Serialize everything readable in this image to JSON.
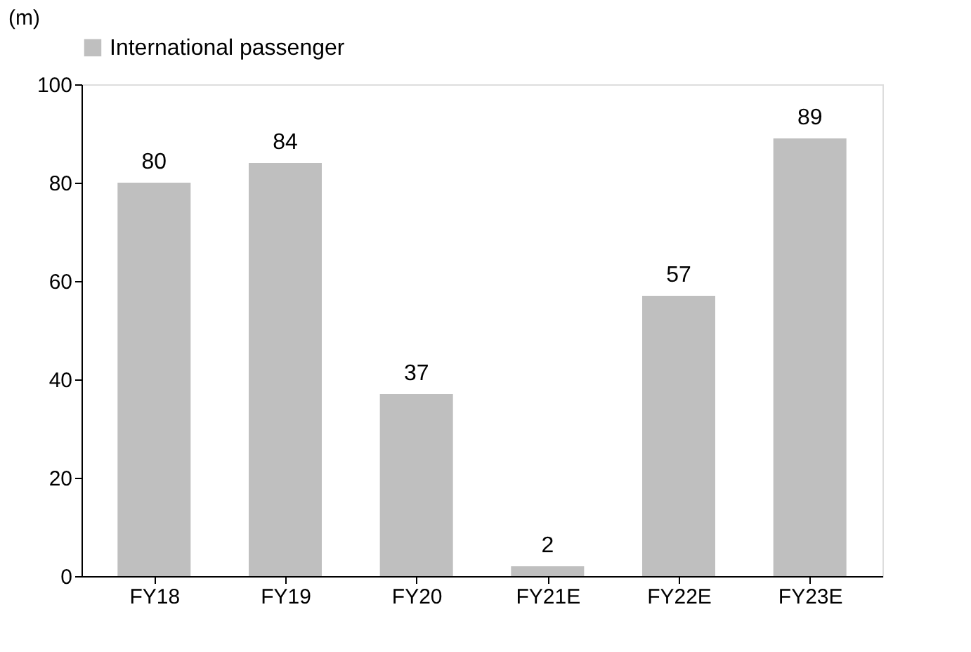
{
  "chart_data": {
    "type": "bar",
    "ylabel": "(m)",
    "categories": [
      "FY18",
      "FY19",
      "FY20",
      "FY21E",
      "FY22E",
      "FY23E"
    ],
    "series": [
      {
        "name": "International passenger",
        "color": "#bfbfbf",
        "values": [
          80,
          84,
          37,
          2,
          57,
          89
        ]
      }
    ],
    "ylim": [
      0,
      100
    ],
    "yticks": [
      0,
      20,
      40,
      60,
      80,
      100
    ],
    "grid": false,
    "legend": "top",
    "data_labels": true
  }
}
